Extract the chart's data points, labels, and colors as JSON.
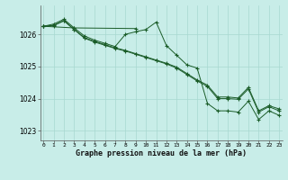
{
  "background_color": "#c8ede8",
  "grid_color": "#a8d8d0",
  "line_color": "#1a5c28",
  "title": "Graphe pression niveau de la mer (hPa)",
  "xlim": [
    -0.3,
    23.3
  ],
  "ylim": [
    1022.7,
    1026.9
  ],
  "yticks": [
    1023,
    1024,
    1025,
    1026
  ],
  "xticks": [
    0,
    1,
    2,
    3,
    4,
    5,
    6,
    7,
    8,
    9,
    10,
    11,
    12,
    13,
    14,
    15,
    16,
    17,
    18,
    19,
    20,
    21,
    22,
    23
  ],
  "lines": [
    {
      "x": [
        0,
        1,
        2,
        3,
        4,
        5,
        6,
        7,
        8,
        9,
        10,
        11,
        12,
        13,
        14,
        15,
        16,
        17,
        18,
        19,
        20,
        21,
        22,
        23
      ],
      "y": [
        1026.25,
        1026.32,
        1026.47,
        1026.2,
        1025.95,
        1025.82,
        1025.72,
        1025.62,
        1026.0,
        1026.08,
        1026.15,
        1026.38,
        1025.65,
        1025.35,
        1025.05,
        1024.95,
        1023.85,
        1023.62,
        1023.62,
        1023.58,
        1023.92,
        1023.35,
        1023.62,
        1023.48
      ]
    },
    {
      "x": [
        0,
        1,
        2,
        3,
        4,
        5,
        6,
        7,
        8,
        9,
        10,
        11,
        12,
        13,
        14,
        15,
        16,
        17,
        18,
        19,
        20,
        21,
        22,
        23
      ],
      "y": [
        1026.25,
        1026.28,
        1026.43,
        1026.15,
        1025.9,
        1025.78,
        1025.68,
        1025.58,
        1025.5,
        1025.4,
        1025.3,
        1025.2,
        1025.1,
        1024.98,
        1024.78,
        1024.58,
        1024.42,
        1024.05,
        1024.05,
        1024.02,
        1024.35,
        1023.62,
        1023.78,
        1023.68
      ]
    },
    {
      "x": [
        0,
        3,
        9
      ],
      "y": [
        1026.25,
        1026.2,
        1026.18
      ]
    },
    {
      "x": [
        0,
        1,
        2,
        3,
        4,
        5,
        6,
        7,
        8,
        9,
        10,
        11,
        12,
        13,
        14,
        15,
        16,
        17,
        18,
        19,
        20,
        21,
        22,
        23
      ],
      "y": [
        1026.25,
        1026.27,
        1026.42,
        1026.15,
        1025.88,
        1025.76,
        1025.66,
        1025.56,
        1025.48,
        1025.38,
        1025.28,
        1025.18,
        1025.08,
        1024.95,
        1024.75,
        1024.55,
        1024.38,
        1024.0,
        1024.0,
        1023.98,
        1024.3,
        1023.58,
        1023.75,
        1023.62
      ]
    }
  ]
}
